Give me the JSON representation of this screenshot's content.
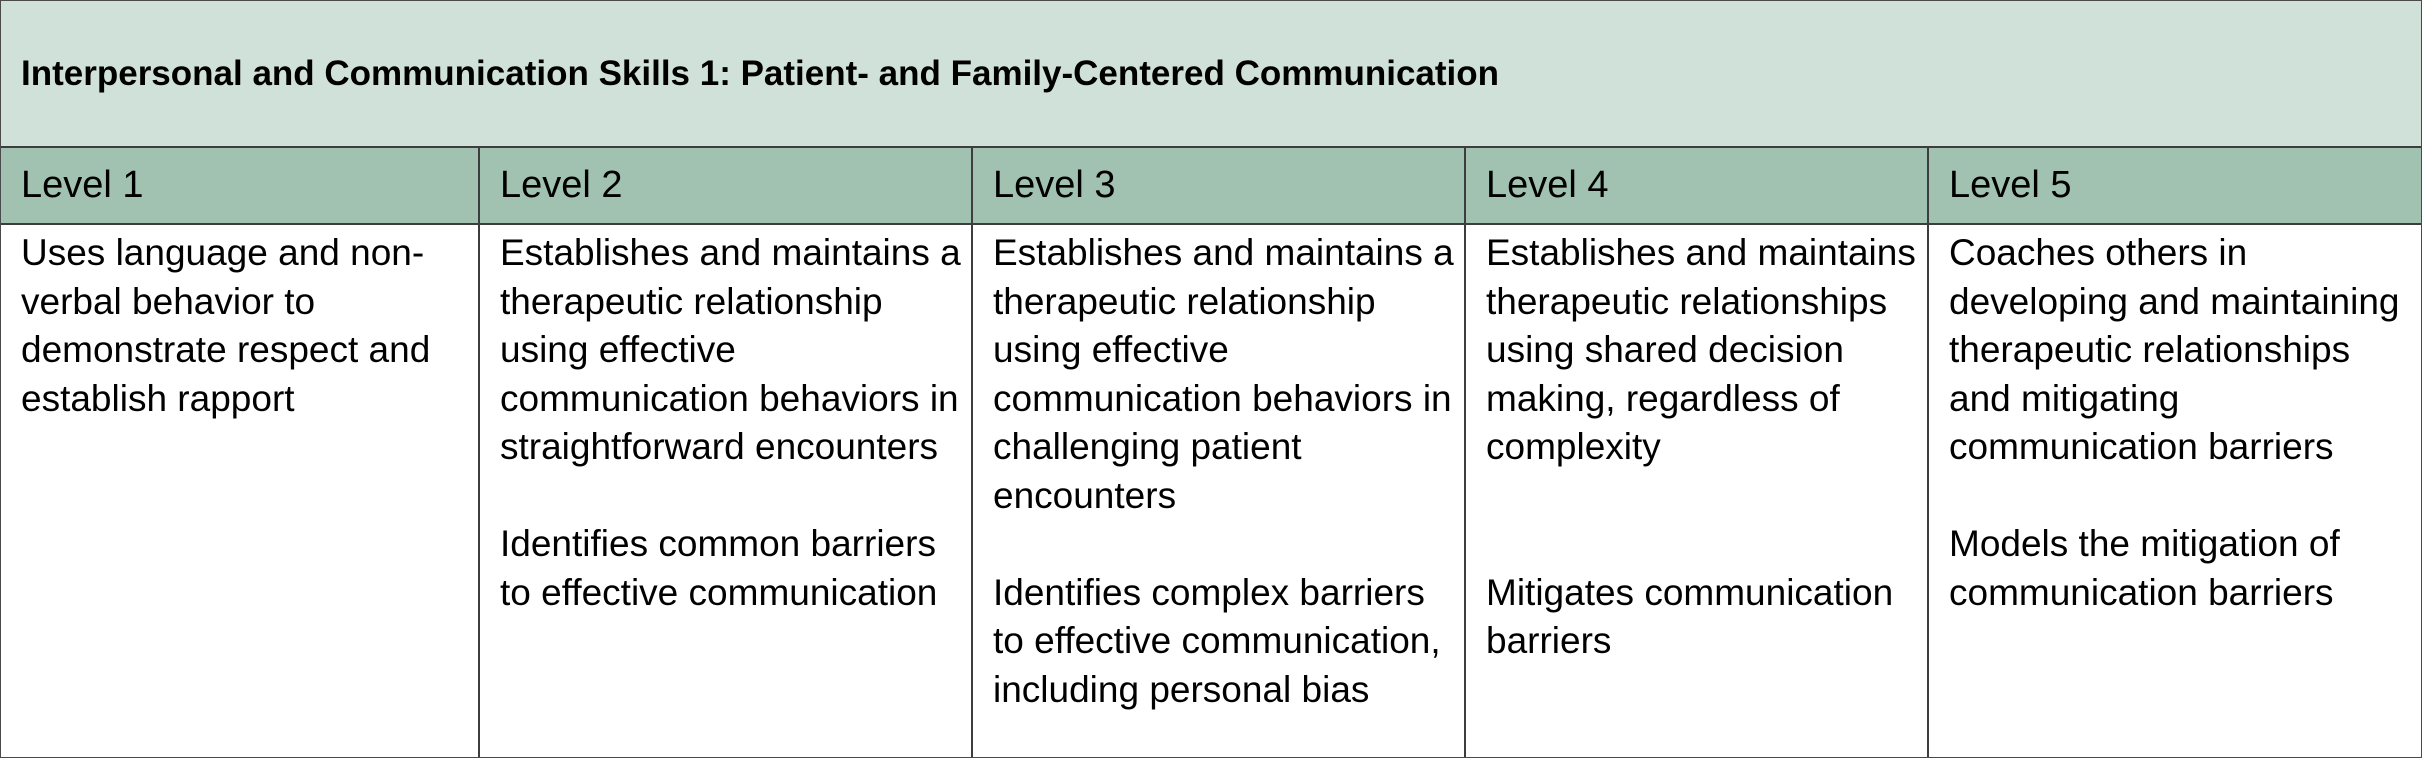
{
  "table": {
    "title": "Interpersonal and Communication Skills 1: Patient- and Family-Centered Communication",
    "colors": {
      "title_bg": "#d0e1d9",
      "header_bg": "#a1c1b1",
      "border": "#3d3d3d"
    },
    "levels": [
      {
        "label": "Level 1",
        "text_1": "Uses language and non-verbal behavior to demonstrate respect and establish rapport",
        "text_2": ""
      },
      {
        "label": "Level 2",
        "text_1": "Establishes and maintains a therapeutic relationship using effective communication behaviors in straightforward encounters",
        "text_2": "Identifies common barriers to effective communication"
      },
      {
        "label": "Level 3",
        "text_1": "Establishes and maintains a therapeutic relationship using effective communication behaviors in challenging patient encounters",
        "text_2": "Identifies complex barriers to effective communication, including personal bias"
      },
      {
        "label": "Level 4",
        "text_1": "Establishes and maintains therapeutic relationships using shared decision making, regardless of complexity",
        "text_2": "Mitigates communication barriers"
      },
      {
        "label": "Level 5",
        "text_1": "Coaches others in developing and maintaining therapeutic relationships and mitigating communication barriers",
        "text_2": "Models the mitigation of communication barriers"
      }
    ]
  }
}
